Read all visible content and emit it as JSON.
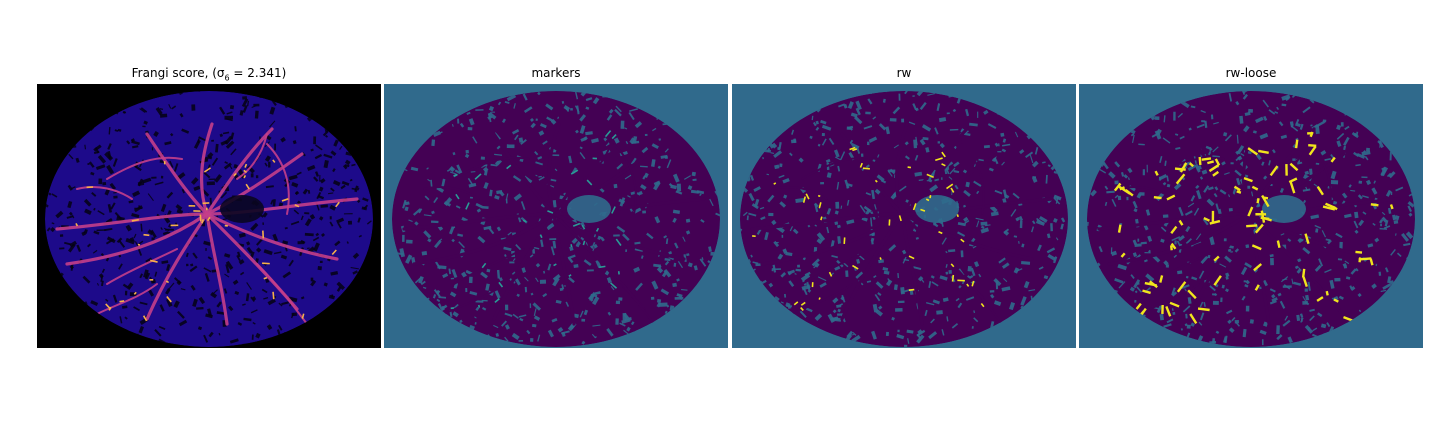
{
  "figure": {
    "panels": [
      {
        "title": "Frangi score, ",
        "title_math": "(σ",
        "title_sub": "6",
        "title_tail": " = 2.341)",
        "image": "frangi-vesselness-fundus",
        "colormap": "plasma",
        "background": "#000000",
        "base": "#1d0a8a",
        "vessel": "#c43e8a",
        "bright": "#f6b04a"
      },
      {
        "title": "markers",
        "image": "marker-labels-fundus",
        "colormap": "viridis",
        "background": "#306a8c",
        "base": "#440154",
        "vessel": "#440154",
        "bright": "#2a9b96"
      },
      {
        "title": "rw",
        "image": "random-walker-segmentation",
        "colormap": "viridis",
        "background": "#306a8c",
        "base": "#440154",
        "vessel": "#440154",
        "bright": "#f1e51d"
      },
      {
        "title": "rw-loose",
        "image": "random-walker-loose-segmentation",
        "colormap": "viridis",
        "background": "#306a8c",
        "base": "#440154",
        "vessel": "#440154",
        "bright": "#f1e51d"
      }
    ]
  }
}
